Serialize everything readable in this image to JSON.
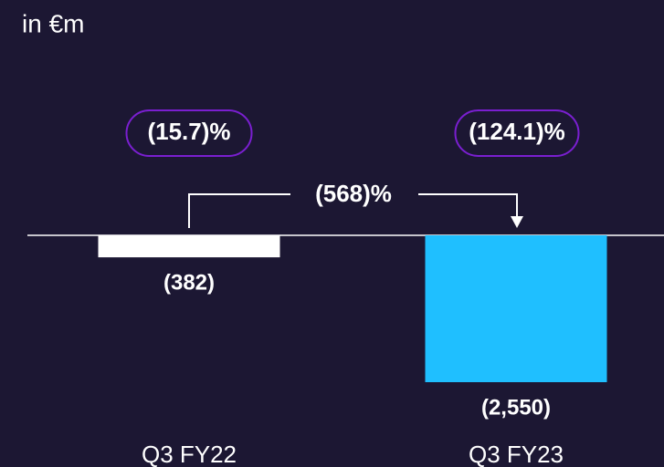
{
  "chart_data": {
    "type": "bar",
    "subtitle": "in €m",
    "categories": [
      "Q3 FY22",
      "Q3 FY23"
    ],
    "values": [
      -382,
      -2550
    ],
    "value_labels": [
      "(382)",
      "(2,550)"
    ],
    "colors": [
      "#ffffff",
      "#1fbfff"
    ],
    "growth_labels": [
      "(15.7)%",
      "(124.1)%"
    ],
    "change_label": "(568)%"
  }
}
